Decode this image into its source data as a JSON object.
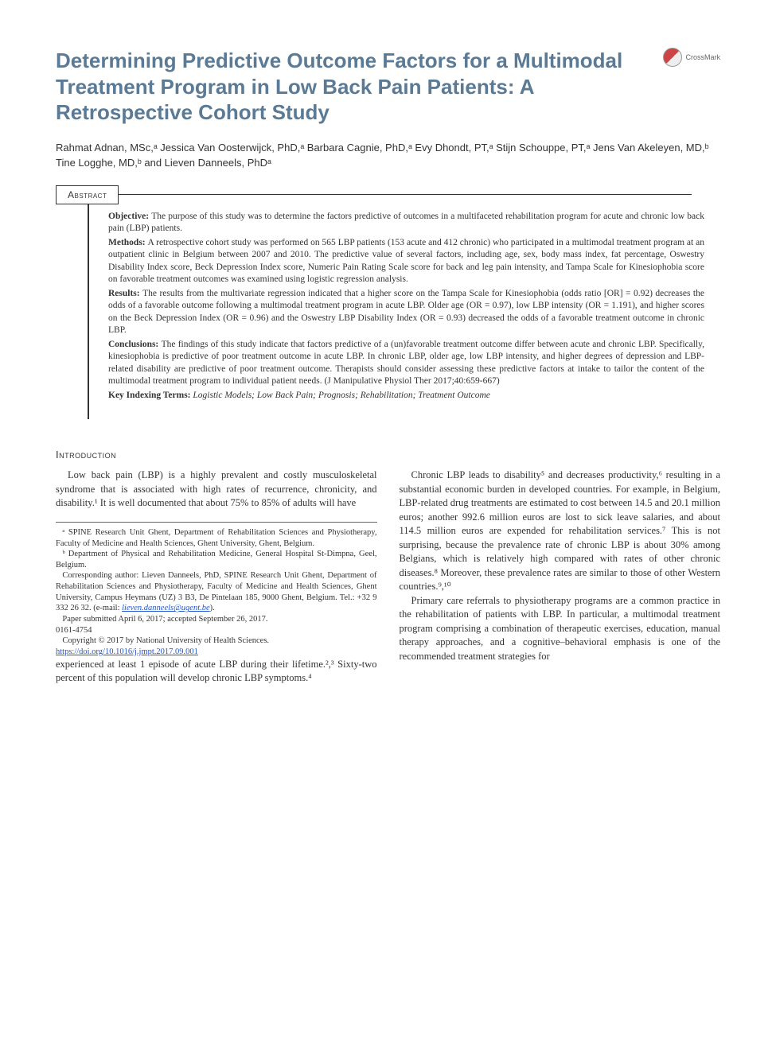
{
  "title": "Determining Predictive Outcome Factors for a Multimodal Treatment Program in Low Back Pain Patients: A Retrospective Cohort Study",
  "crossmark_label": "CrossMark",
  "authors_html": "Rahmat Adnan, MSc,ᵃ Jessica Van Oosterwijck, PhD,ᵃ Barbara Cagnie, PhD,ᵃ Evy Dhondt, PT,ᵃ Stijn Schouppe, PT,ᵃ Jens Van Akeleyen, MD,ᵇ Tine Logghe, MD,ᵇ and Lieven Danneels, PhDᵃ",
  "abstract_label": "Abstract",
  "abstract": {
    "objective": "The purpose of this study was to determine the factors predictive of outcomes in a multifaceted rehabilitation program for acute and chronic low back pain (LBP) patients.",
    "methods": "A retrospective cohort study was performed on 565 LBP patients (153 acute and 412 chronic) who participated in a multimodal treatment program at an outpatient clinic in Belgium between 2007 and 2010. The predictive value of several factors, including age, sex, body mass index, fat percentage, Oswestry Disability Index score, Beck Depression Index score, Numeric Pain Rating Scale score for back and leg pain intensity, and Tampa Scale for Kinesiophobia score on favorable treatment outcomes was examined using logistic regression analysis.",
    "results": "The results from the multivariate regression indicated that a higher score on the Tampa Scale for Kinesiophobia (odds ratio [OR] = 0.92) decreases the odds of a favorable outcome following a multimodal treatment program in acute LBP. Older age (OR = 0.97), low LBP intensity (OR = 1.191), and higher scores on the Beck Depression Index (OR = 0.96) and the Oswestry LBP Disability Index (OR = 0.93) decreased the odds of a favorable treatment outcome in chronic LBP.",
    "conclusions": "The findings of this study indicate that factors predictive of a (un)favorable treatment outcome differ between acute and chronic LBP. Specifically, kinesiophobia is predictive of poor treatment outcome in acute LBP. In chronic LBP, older age, low LBP intensity, and higher degrees of depression and LBP-related disability are predictive of poor treatment outcome. Therapists should consider assessing these predictive factors at intake to tailor the content of the multimodal treatment program to individual patient needs. (J Manipulative Physiol Ther 2017;40:659-667)",
    "keywords_label": "Key Indexing Terms:",
    "keywords": "Logistic Models; Low Back Pain; Prognosis; Rehabilitation; Treatment Outcome"
  },
  "intro_heading": "Introduction",
  "body": {
    "p1": "Low back pain (LBP) is a highly prevalent and costly musculoskeletal syndrome that is associated with high rates of recurrence, chronicity, and disability.¹ It is well documented that about 75% to 85% of adults will have",
    "p2": "experienced at least 1 episode of acute LBP during their lifetime.²,³ Sixty-two percent of this population will develop chronic LBP symptoms.⁴",
    "p3": "Chronic LBP leads to disability⁵ and decreases productivity,⁶ resulting in a substantial economic burden in developed countries. For example, in Belgium, LBP-related drug treatments are estimated to cost between 14.5 and 20.1 million euros; another 992.6 million euros are lost to sick leave salaries, and about 114.5 million euros are expended for rehabilitation services.⁷ This is not surprising, because the prevalence rate of chronic LBP is about 30% among Belgians, which is relatively high compared with rates of other chronic diseases.⁸ Moreover, these prevalence rates are similar to those of other Western countries.⁹,¹⁰",
    "p4": "Primary care referrals to physiotherapy programs are a common practice in the rehabilitation of patients with LBP. In particular, a multimodal treatment program comprising a combination of therapeutic exercises, education, manual therapy approaches, and a cognitive–behavioral emphasis is one of the recommended treatment strategies for"
  },
  "footnotes": {
    "aff_a": "ᵃ SPINE Research Unit Ghent, Department of Rehabilitation Sciences and Physiotherapy, Faculty of Medicine and Health Sciences, Ghent University, Ghent, Belgium.",
    "aff_b": "ᵇ Department of Physical and Rehabilitation Medicine, General Hospital St-Dimpna, Geel, Belgium.",
    "corresponding": "Corresponding author: Lieven Danneels, PhD, SPINE Research Unit Ghent, Department of Rehabilitation Sciences and Physiotherapy, Faculty of Medicine and Health Sciences, Ghent University, Campus Heymans (UZ) 3 B3, De Pintelaan 185, 9000 Ghent, Belgium. Tel.: +32 9 332 26 32. (e-mail: ",
    "email": "lieven.danneels@ugent.be",
    "corresponding_close": ").",
    "submitted": "Paper submitted April 6, 2017; accepted September 26, 2017.",
    "issn": "0161-4754",
    "copyright": "Copyright © 2017 by National University of Health Sciences.",
    "doi": "https://doi.org/10.1016/j.jmpt.2017.09.001"
  },
  "colors": {
    "title_color": "#5a7a95",
    "text_color": "#333333",
    "link_color": "#2255cc",
    "background": "#ffffff",
    "rule_color": "#333333"
  },
  "typography": {
    "title_fontsize": 26,
    "title_weight": "bold",
    "body_fontsize": 12.5,
    "abstract_fontsize": 11.5,
    "footnote_fontsize": 10.5,
    "authors_fontsize": 13
  }
}
